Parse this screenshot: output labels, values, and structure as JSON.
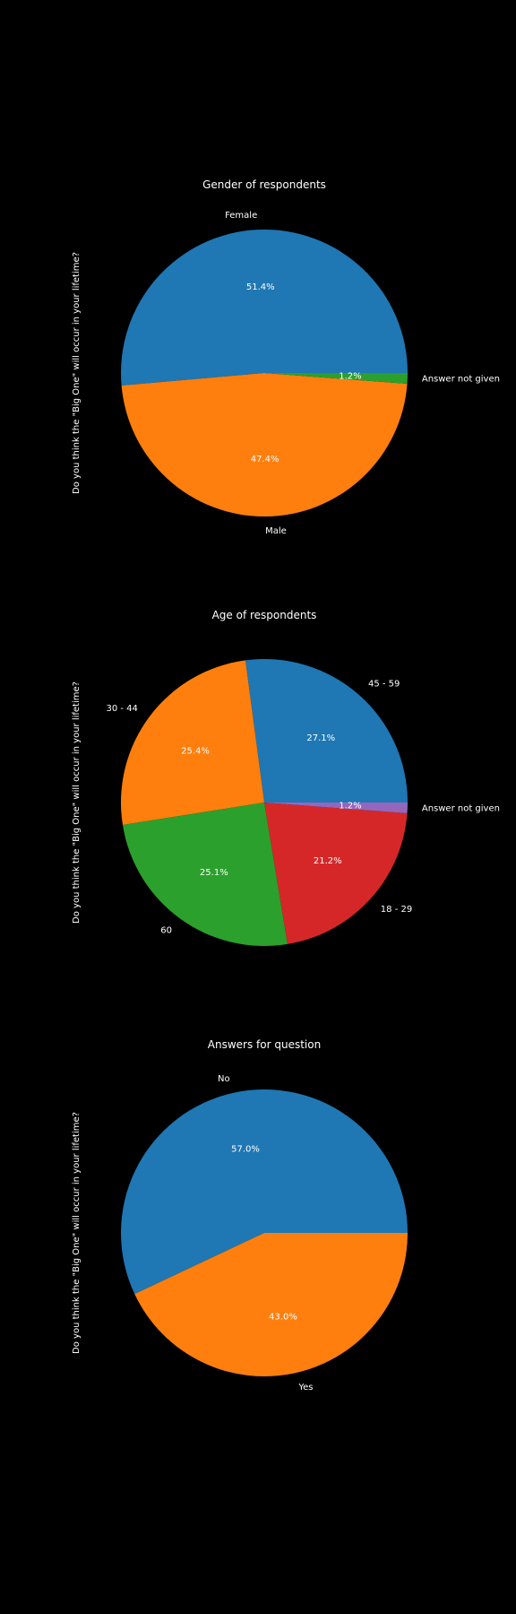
{
  "chart_data": [
    {
      "type": "pie",
      "title": "Gender of respondents",
      "ylabel": "Do you think the \"Big One\" will occur in your lifetime?",
      "slices": [
        {
          "label": "Female",
          "value": 51.4,
          "pct_label": "51.4%",
          "color": "#1f77b4"
        },
        {
          "label": "Male",
          "value": 47.4,
          "pct_label": "47.4%",
          "color": "#ff7f0e"
        },
        {
          "label": "Answer not given",
          "value": 1.2,
          "pct_label": "1.2%",
          "color": "#2ca02c"
        }
      ]
    },
    {
      "type": "pie",
      "title": "Age of respondents",
      "ylabel": "Do you think the \"Big One\" will occur in your lifetime?",
      "slices": [
        {
          "label": "45 - 59",
          "value": 27.1,
          "pct_label": "27.1%",
          "color": "#1f77b4"
        },
        {
          "label": "30 - 44",
          "value": 25.4,
          "pct_label": "25.4%",
          "color": "#ff7f0e"
        },
        {
          "label": "60",
          "value": 25.1,
          "pct_label": "25.1%",
          "color": "#2ca02c"
        },
        {
          "label": "18 - 29",
          "value": 21.2,
          "pct_label": "21.2%",
          "color": "#d62728"
        },
        {
          "label": "Answer not given",
          "value": 1.2,
          "pct_label": "1.2%",
          "color": "#9467bd"
        }
      ]
    },
    {
      "type": "pie",
      "title": "Answers for question",
      "ylabel": "Do you think the \"Big One\" will occur in your lifetime?",
      "slices": [
        {
          "label": "No",
          "value": 57.0,
          "pct_label": "57.0%",
          "color": "#1f77b4"
        },
        {
          "label": "Yes",
          "value": 43.0,
          "pct_label": "43.0%",
          "color": "#ff7f0e"
        }
      ]
    }
  ]
}
